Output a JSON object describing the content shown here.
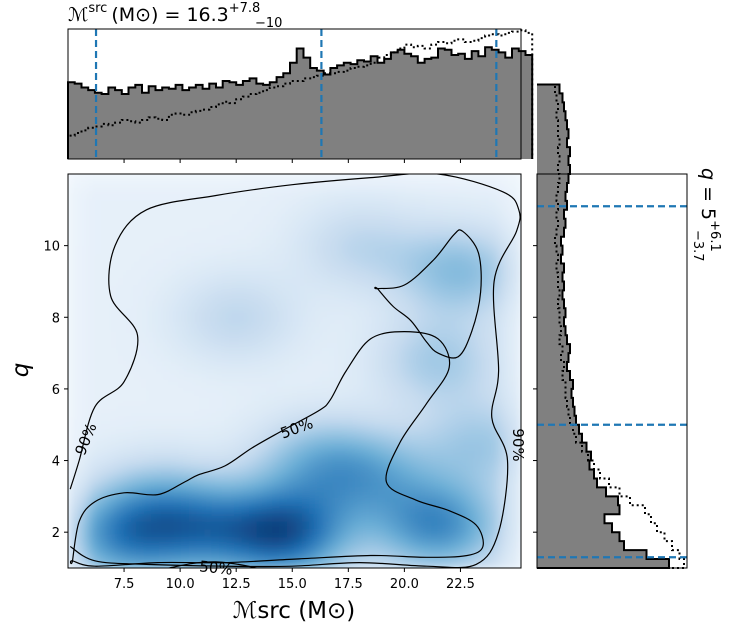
{
  "chart_data": [
    {
      "type": "heatmap",
      "name": "joint",
      "xlabel": "ℳsrc (M⊙)",
      "ylabel": "q",
      "xlim": [
        5.0,
        25.2
      ],
      "ylim": [
        1.0,
        12.0
      ],
      "xticks": [
        7.5,
        10.0,
        12.5,
        15.0,
        17.5,
        20.0,
        22.5
      ],
      "xtick_labels": [
        "7.5",
        "10.0",
        "12.5",
        "15.0",
        "17.5",
        "20.0",
        "22.5"
      ],
      "yticks": [
        2,
        4,
        6,
        8,
        10
      ],
      "ytick_labels": [
        "2",
        "4",
        "6",
        "8",
        "10"
      ],
      "colormap": [
        "#f7fbff",
        "#c6dbef",
        "#6baed6",
        "#2171b5",
        "#08306b"
      ],
      "density_peaks": [
        {
          "x": 14.7,
          "y": 2.0,
          "weight": 1.0
        },
        {
          "x": 7.5,
          "y": 1.9,
          "weight": 0.7
        },
        {
          "x": 11.0,
          "y": 2.1,
          "weight": 0.6
        },
        {
          "x": 21.5,
          "y": 2.2,
          "weight": 0.75
        },
        {
          "x": 18.5,
          "y": 3.6,
          "weight": 0.45
        },
        {
          "x": 22.5,
          "y": 9.3,
          "weight": 0.45
        },
        {
          "x": 21.5,
          "y": 6.8,
          "weight": 0.35
        },
        {
          "x": 16.0,
          "y": 4.0,
          "weight": 0.4
        },
        {
          "x": 9.0,
          "y": 3.0,
          "weight": 0.3
        },
        {
          "x": 23.5,
          "y": 4.5,
          "weight": 0.35
        },
        {
          "x": 12.5,
          "y": 8.0,
          "weight": 0.25
        },
        {
          "x": 18.0,
          "y": 10.0,
          "weight": 0.25
        }
      ],
      "contours": [
        {
          "level_label": "90%",
          "label_at": [
            5.8,
            4.6
          ],
          "points": [
            [
              5.1,
              3.2
            ],
            [
              5.5,
              4.0
            ],
            [
              6.2,
              5.5
            ],
            [
              7.5,
              6.2
            ],
            [
              8.1,
              7.5
            ],
            [
              6.9,
              8.6
            ],
            [
              7.1,
              10.0
            ],
            [
              8.5,
              11.0
            ],
            [
              11.6,
              11.4
            ],
            [
              15.0,
              11.7
            ],
            [
              18.5,
              11.9
            ],
            [
              21.5,
              12.0
            ],
            [
              24.4,
              11.5
            ],
            [
              25.1,
              11.0
            ],
            [
              25.0,
              10.4
            ],
            [
              24.0,
              9.0
            ],
            [
              24.2,
              6.5
            ],
            [
              23.9,
              5.2
            ],
            [
              24.6,
              4.0
            ],
            [
              24.2,
              2.0
            ],
            [
              23.2,
              1.1
            ],
            [
              21.0,
              1.05
            ],
            [
              18.0,
              1.15
            ],
            [
              15.0,
              1.05
            ],
            [
              12.0,
              1.05
            ],
            [
              8.5,
              1.1
            ],
            [
              6.2,
              1.2
            ],
            [
              5.1,
              1.6
            ]
          ]
        },
        {
          "level_label": "50%",
          "label_at": [
            15.2,
            4.9
          ],
          "points": [
            [
              5.2,
              1.2
            ],
            [
              5.5,
              2.3
            ],
            [
              6.2,
              2.85
            ],
            [
              7.5,
              3.1
            ],
            [
              9.0,
              3.05
            ],
            [
              10.2,
              3.4
            ],
            [
              10.8,
              3.6
            ],
            [
              12.0,
              3.85
            ],
            [
              13.2,
              4.35
            ],
            [
              14.6,
              4.85
            ],
            [
              16.2,
              5.4
            ],
            [
              16.7,
              5.7
            ],
            [
              17.4,
              6.5
            ],
            [
              18.5,
              7.4
            ],
            [
              20.0,
              7.6
            ],
            [
              21.5,
              7.4
            ],
            [
              22.0,
              6.6
            ],
            [
              21.0,
              5.6
            ],
            [
              19.8,
              4.5
            ],
            [
              19.2,
              3.4
            ],
            [
              20.5,
              2.9
            ],
            [
              22.0,
              2.6
            ],
            [
              23.2,
              2.2
            ],
            [
              23.5,
              1.6
            ],
            [
              22.8,
              1.35
            ],
            [
              21.0,
              1.3
            ],
            [
              18.5,
              1.35
            ],
            [
              15.2,
              1.25
            ],
            [
              12.0,
              1.15
            ],
            [
              9.0,
              1.15
            ],
            [
              6.2,
              1.05
            ],
            [
              5.2,
              1.2
            ]
          ]
        },
        {
          "level_label": "50%",
          "label_at": [
            11.6,
            1.0
          ],
          "points": [
            [
              9.5,
              1.0
            ],
            [
              10.6,
              1.13
            ],
            [
              11.6,
              1.17
            ],
            [
              12.6,
              1.1
            ],
            [
              13.4,
              1.0
            ]
          ]
        },
        {
          "level_label": "",
          "points": [
            [
              18.8,
              8.8
            ],
            [
              20.0,
              8.9
            ],
            [
              21.3,
              9.6
            ],
            [
              22.2,
              10.3
            ],
            [
              22.6,
              10.4
            ],
            [
              23.3,
              9.8
            ],
            [
              23.4,
              8.7
            ],
            [
              23.0,
              7.6
            ],
            [
              22.4,
              6.9
            ],
            [
              21.5,
              7.0
            ],
            [
              21.0,
              7.3
            ],
            [
              20.3,
              7.9
            ],
            [
              19.5,
              8.3
            ],
            [
              18.8,
              8.8
            ]
          ]
        }
      ],
      "right_edge_label": "90%"
    },
    {
      "type": "step",
      "name": "top-marginal",
      "title_parts": {
        "main": "ℳ",
        "sup": "src",
        "unit": "(M⊙) = 16.3",
        "upper": "+7.8",
        "lower": "−10"
      },
      "x_start": 5.0,
      "x_step": 0.3,
      "posterior": [
        59,
        58,
        55,
        53,
        51,
        50,
        55,
        53,
        50,
        55,
        57,
        51,
        56,
        53,
        55,
        54,
        57,
        53,
        55,
        57,
        54,
        58,
        55,
        60,
        59,
        57,
        60,
        62,
        58,
        57,
        59,
        63,
        66,
        74,
        85,
        78,
        70,
        68,
        65,
        70,
        72,
        74,
        73,
        76,
        75,
        79,
        74,
        77,
        82,
        84,
        81,
        79,
        74,
        77,
        78,
        85,
        84,
        80,
        81,
        77,
        83,
        79,
        86,
        84,
        82,
        78,
        85,
        83,
        80
      ],
      "prior": [
        18,
        20,
        22,
        24,
        25,
        27,
        26,
        28,
        30,
        29,
        28,
        30,
        32,
        31,
        30,
        34,
        35,
        34,
        36,
        37,
        38,
        40,
        42,
        44,
        43,
        46,
        48,
        50,
        51,
        53,
        55,
        56,
        58,
        60,
        60,
        62,
        63,
        64,
        66,
        66,
        67,
        68,
        70,
        71,
        72,
        74,
        78,
        80,
        82,
        85,
        88,
        86,
        87,
        85,
        88,
        90,
        89,
        91,
        92,
        90,
        91,
        93,
        95,
        96,
        95,
        97,
        98,
        99,
        97
      ],
      "dashed_lines_x": [
        6.25,
        16.3,
        24.1
      ],
      "fill_color": "#808080",
      "dash_color": "#1f77b4"
    },
    {
      "type": "step",
      "name": "right-marginal",
      "orientation": "horizontal",
      "title_parts": {
        "main": "q",
        "eq": " = 5",
        "upper": "+6.1",
        "lower": "−3.7"
      },
      "y_start": 1.0,
      "y_step": 0.25,
      "posterior": [
        88,
        73,
        58,
        55,
        50,
        45,
        55,
        54,
        46,
        40,
        38,
        35,
        36,
        33,
        30,
        28,
        26,
        25,
        24,
        23,
        24,
        22,
        20,
        21,
        22,
        20,
        19,
        18,
        19,
        18,
        17,
        18,
        17,
        18,
        16,
        17,
        16,
        18,
        19,
        18,
        20,
        19,
        20,
        21,
        22,
        21,
        22,
        20,
        21,
        20,
        19,
        18,
        17,
        15
      ],
      "prior": [
        98,
        95,
        90,
        85,
        80,
        76,
        72,
        62,
        55,
        48,
        42,
        38,
        34,
        30,
        26,
        24,
        22,
        21,
        20,
        19,
        19,
        17,
        18,
        16,
        17,
        15,
        16,
        15,
        15,
        14,
        15,
        14,
        14,
        13,
        14,
        13,
        12,
        13,
        14,
        13,
        14,
        13,
        14,
        15,
        14,
        15,
        14,
        15,
        14,
        14,
        13,
        14,
        13,
        12
      ],
      "dashed_lines_y": [
        1.3,
        5.0,
        11.1
      ],
      "fill_color": "#808080",
      "dash_color": "#1f77b4"
    }
  ]
}
